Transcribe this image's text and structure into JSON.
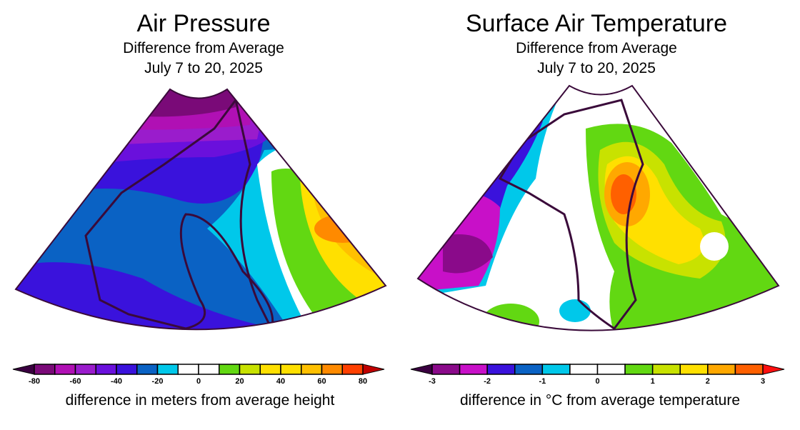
{
  "panels": [
    {
      "title": "Air Pressure",
      "subtitle": "Difference from Average",
      "period": "July 7 to 20, 2025",
      "colorbar": {
        "label": "difference in meters from average height",
        "bounds": [
          -80,
          -70,
          -60,
          -50,
          -40,
          -30,
          -20,
          -10,
          0,
          10,
          20,
          30,
          40,
          50,
          60,
          70,
          80
        ],
        "tick_labels": [
          "-80",
          "-60",
          "-40",
          "-20",
          "0",
          "20",
          "40",
          "60",
          "80"
        ],
        "colors": [
          "#7a0a78",
          "#b010b4",
          "#9a1ccc",
          "#6a10dc",
          "#3a12dc",
          "#0a62c4",
          "#00c8ea",
          "#ffffff",
          "#ffffff",
          "#62d812",
          "#c8e200",
          "#ffe000",
          "#ffe000",
          "#ffc000",
          "#ff8a00",
          "#ff4000"
        ],
        "under_color": "#3a0040",
        "over_color": "#c00000"
      }
    },
    {
      "title": "Surface Air Temperature",
      "subtitle": "Difference from Average",
      "period": "July 7 to 20, 2025",
      "colorbar": {
        "label": "difference in °C from average temperature",
        "bounds": [
          -3,
          -2.5,
          -2,
          -1.5,
          -1,
          -0.5,
          0,
          0.5,
          1,
          1.5,
          2,
          2.5,
          3
        ],
        "tick_labels": [
          "-3",
          "-2",
          "-1",
          "0",
          "1",
          "2",
          "3"
        ],
        "colors": [
          "#8a0a8a",
          "#c810c8",
          "#3a12dc",
          "#0a62c4",
          "#00c8ea",
          "#ffffff",
          "#ffffff",
          "#62d812",
          "#c8e200",
          "#ffe000",
          "#ffa800",
          "#ff6000"
        ],
        "under_color": "#3a0040",
        "over_color": "#ff1010"
      }
    }
  ]
}
